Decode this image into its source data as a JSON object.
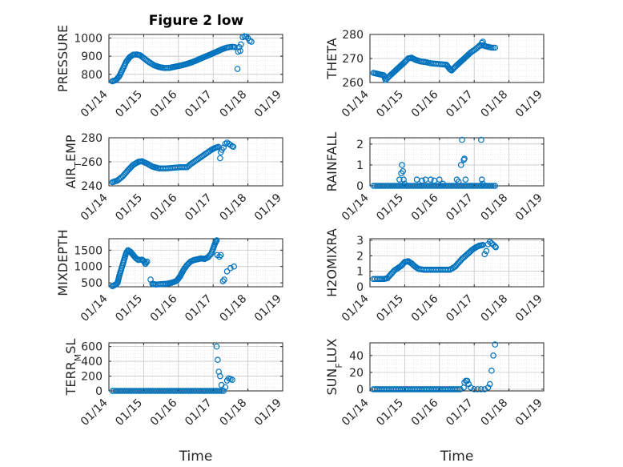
{
  "title": "Figure 2 low",
  "colors": {
    "marker": "#0072BD",
    "axis": "#262626",
    "grid": "#c8c8c8",
    "minor_grid": "#e3e3e3"
  },
  "x_tick_labels": [
    "01/14",
    "01/15",
    "01/16",
    "01/17",
    "01/18",
    "01/19"
  ],
  "xlabel": "Time",
  "chart_data": [
    {
      "type": "scatter",
      "id": "pressure",
      "ylabel": "PRESSURE",
      "ylabel_sub": "",
      "ylim": [
        755,
        1020
      ],
      "yticks": [
        800,
        900,
        1000
      ],
      "ytick_labels": [
        "800",
        "900",
        "1000"
      ],
      "xlim": [
        0,
        5
      ],
      "segments": [
        [
          [
            0.1,
            762
          ],
          [
            0.2,
            768
          ],
          [
            0.3,
            790
          ],
          [
            0.4,
            830
          ],
          [
            0.5,
            870
          ],
          [
            0.6,
            895
          ],
          [
            0.7,
            908
          ],
          [
            0.8,
            910
          ],
          [
            0.9,
            905
          ],
          [
            1.0,
            890
          ],
          [
            1.15,
            868
          ],
          [
            1.3,
            850
          ],
          [
            1.45,
            840
          ],
          [
            1.6,
            835
          ],
          [
            1.75,
            836
          ],
          [
            1.9,
            842
          ],
          [
            2.05,
            848
          ],
          [
            2.2,
            855
          ],
          [
            2.35,
            864
          ],
          [
            2.5,
            875
          ],
          [
            2.65,
            888
          ],
          [
            2.8,
            900
          ],
          [
            2.95,
            912
          ],
          [
            3.1,
            925
          ],
          [
            3.25,
            938
          ],
          [
            3.4,
            948
          ],
          [
            3.55,
            952
          ],
          [
            3.62,
            950
          ]
        ]
      ],
      "points": [
        [
          3.7,
          830
        ],
        [
          3.72,
          925
        ],
        [
          3.75,
          950
        ],
        [
          3.8,
          965
        ],
        [
          3.78,
          930
        ],
        [
          3.85,
          1005
        ],
        [
          3.9,
          1010
        ],
        [
          3.95,
          1008
        ],
        [
          4.0,
          1000
        ],
        [
          4.05,
          985
        ],
        [
          4.1,
          980
        ]
      ]
    },
    {
      "type": "scatter",
      "id": "theta",
      "ylabel": "THETA",
      "ylabel_sub": "",
      "ylim": [
        260,
        280
      ],
      "yticks": [
        260,
        270,
        280
      ],
      "ytick_labels": [
        "260",
        "270",
        "280"
      ],
      "xlim": [
        0,
        5
      ],
      "segments": [
        [
          [
            0.1,
            264
          ],
          [
            0.25,
            263.5
          ],
          [
            0.4,
            263
          ],
          [
            0.45,
            261
          ],
          [
            0.55,
            262.5
          ],
          [
            0.7,
            264.5
          ],
          [
            0.85,
            266.5
          ],
          [
            1.0,
            268.5
          ],
          [
            1.1,
            270
          ],
          [
            1.2,
            270.3
          ],
          [
            1.3,
            269.5
          ],
          [
            1.45,
            268.8
          ],
          [
            1.6,
            268.5
          ],
          [
            1.75,
            268
          ],
          [
            1.9,
            267.8
          ],
          [
            2.05,
            267.6
          ],
          [
            2.2,
            267.4
          ],
          [
            2.3,
            265.5
          ],
          [
            2.35,
            265
          ],
          [
            2.45,
            266.5
          ],
          [
            2.6,
            268.5
          ],
          [
            2.75,
            270.5
          ],
          [
            2.9,
            272.5
          ],
          [
            3.05,
            274
          ],
          [
            3.15,
            275.3
          ],
          [
            3.25,
            275.5
          ],
          [
            3.35,
            275
          ],
          [
            3.5,
            274.5
          ],
          [
            3.6,
            274.5
          ]
        ]
      ],
      "points": [
        [
          3.25,
          277
        ],
        [
          3.22,
          276.5
        ]
      ]
    },
    {
      "type": "scatter",
      "id": "air_temp",
      "ylabel": "AIR",
      "ylabel_sub": "T",
      "ylabel_tail": "EMP",
      "ylim": [
        240,
        280
      ],
      "yticks": [
        240,
        260,
        280
      ],
      "ytick_labels": [
        "240",
        "260",
        "280"
      ],
      "xlim": [
        0,
        5
      ],
      "segments": [
        [
          [
            0.1,
            243
          ],
          [
            0.25,
            244.5
          ],
          [
            0.4,
            248
          ],
          [
            0.55,
            253
          ],
          [
            0.7,
            257.5
          ],
          [
            0.85,
            260
          ],
          [
            0.95,
            260.5
          ],
          [
            1.1,
            258.5
          ],
          [
            1.25,
            256
          ],
          [
            1.45,
            254.5
          ],
          [
            1.65,
            254.5
          ],
          [
            1.85,
            255
          ],
          [
            2.05,
            255.5
          ],
          [
            2.25,
            255.5
          ],
          [
            2.35,
            258
          ],
          [
            2.5,
            261
          ],
          [
            2.65,
            264
          ],
          [
            2.8,
            267
          ],
          [
            2.95,
            270
          ],
          [
            3.05,
            271.5
          ],
          [
            3.15,
            272.5
          ]
        ]
      ],
      "points": [
        [
          3.2,
          263
        ],
        [
          3.22,
          268
        ],
        [
          3.25,
          270
        ],
        [
          3.3,
          272
        ],
        [
          3.35,
          275
        ],
        [
          3.4,
          276
        ],
        [
          3.45,
          275
        ],
        [
          3.5,
          274
        ],
        [
          3.55,
          273
        ],
        [
          3.58,
          272.5
        ]
      ]
    },
    {
      "type": "scatter",
      "id": "rainfall",
      "ylabel": "RAINFALL",
      "ylabel_sub": "",
      "ylim": [
        0,
        2.3
      ],
      "yticks": [
        0,
        1,
        2
      ],
      "ytick_labels": [
        "0",
        "1",
        "2"
      ],
      "xlim": [
        0,
        5
      ],
      "segments": [
        [
          [
            0.1,
            0
          ],
          [
            0.3,
            0
          ],
          [
            0.5,
            0
          ],
          [
            0.7,
            0
          ],
          [
            0.9,
            0
          ],
          [
            1.1,
            0
          ],
          [
            1.3,
            0
          ],
          [
            1.5,
            0
          ],
          [
            1.7,
            0
          ],
          [
            1.9,
            0
          ],
          [
            2.1,
            0
          ],
          [
            2.3,
            0
          ],
          [
            2.5,
            0
          ],
          [
            2.7,
            0
          ],
          [
            2.9,
            0
          ],
          [
            3.1,
            0
          ],
          [
            3.3,
            0
          ],
          [
            3.5,
            0
          ],
          [
            3.6,
            0
          ]
        ]
      ],
      "points": [
        [
          0.85,
          0.3
        ],
        [
          0.9,
          0.6
        ],
        [
          0.92,
          1.0
        ],
        [
          0.95,
          0.7
        ],
        [
          0.97,
          0.3
        ],
        [
          1.0,
          0.1
        ],
        [
          1.35,
          0.3
        ],
        [
          1.5,
          0.25
        ],
        [
          1.6,
          0.3
        ],
        [
          1.75,
          0.3
        ],
        [
          1.85,
          0.25
        ],
        [
          2.0,
          0.3
        ],
        [
          2.1,
          0.1
        ],
        [
          2.5,
          0.3
        ],
        [
          2.55,
          0.2
        ],
        [
          2.62,
          1.0
        ],
        [
          2.65,
          2.2
        ],
        [
          2.7,
          1.25
        ],
        [
          2.72,
          1.3
        ],
        [
          2.75,
          0.3
        ],
        [
          3.2,
          2.2
        ],
        [
          3.22,
          0.3
        ],
        [
          3.25,
          0.1
        ]
      ]
    },
    {
      "type": "scatter",
      "id": "mixdepth",
      "ylabel": "MIXDEPTH",
      "ylabel_sub": "",
      "ylim": [
        380,
        1850
      ],
      "yticks": [
        500,
        1000,
        1500
      ],
      "ytick_labels": [
        "500",
        "1000",
        "1500"
      ],
      "xlim": [
        0,
        5
      ],
      "segments": [
        [
          [
            0.1,
            400
          ],
          [
            0.2,
            450
          ],
          [
            0.25,
            500
          ],
          [
            0.3,
            720
          ],
          [
            0.38,
            1000
          ],
          [
            0.45,
            1250
          ],
          [
            0.5,
            1420
          ],
          [
            0.55,
            1500
          ],
          [
            0.62,
            1450
          ],
          [
            0.7,
            1350
          ],
          [
            0.78,
            1250
          ],
          [
            0.85,
            1200
          ],
          [
            0.95,
            1210
          ],
          [
            1.0,
            1170
          ],
          [
            1.05,
            1080
          ],
          [
            1.1,
            1150
          ]
        ],
        [
          [
            1.25,
            470
          ],
          [
            1.35,
            450
          ],
          [
            1.5,
            460
          ],
          [
            1.65,
            470
          ],
          [
            1.8,
            500
          ],
          [
            1.95,
            560
          ],
          [
            2.05,
            700
          ],
          [
            2.15,
            900
          ],
          [
            2.25,
            1050
          ],
          [
            2.35,
            1150
          ],
          [
            2.45,
            1200
          ],
          [
            2.55,
            1220
          ],
          [
            2.65,
            1250
          ],
          [
            2.75,
            1230
          ],
          [
            2.85,
            1280
          ],
          [
            2.95,
            1400
          ],
          [
            3.0,
            1550
          ],
          [
            3.05,
            1700
          ],
          [
            3.1,
            1800
          ]
        ]
      ],
      "points": [
        [
          1.2,
          600
        ],
        [
          3.12,
          1350
        ],
        [
          3.18,
          1300
        ],
        [
          3.22,
          1350
        ],
        [
          3.28,
          550
        ],
        [
          3.32,
          600
        ],
        [
          3.4,
          850
        ],
        [
          3.5,
          950
        ],
        [
          3.6,
          1000
        ]
      ]
    },
    {
      "type": "scatter",
      "id": "h2omixra",
      "ylabel": "H2OMIXRA",
      "ylabel_sub": "",
      "ylim": [
        0,
        3.1
      ],
      "yticks": [
        0,
        1,
        2,
        3
      ],
      "ytick_labels": [
        "0",
        "1",
        "2",
        "3"
      ],
      "xlim": [
        0,
        5
      ],
      "segments": [
        [
          [
            0.1,
            0.5
          ],
          [
            0.25,
            0.5
          ],
          [
            0.4,
            0.5
          ],
          [
            0.5,
            0.55
          ],
          [
            0.6,
            0.8
          ],
          [
            0.7,
            1.05
          ],
          [
            0.8,
            1.2
          ],
          [
            0.9,
            1.35
          ],
          [
            1.0,
            1.6
          ],
          [
            1.1,
            1.65
          ],
          [
            1.2,
            1.5
          ],
          [
            1.3,
            1.3
          ],
          [
            1.4,
            1.15
          ],
          [
            1.55,
            1.1
          ],
          [
            1.7,
            1.1
          ],
          [
            1.85,
            1.1
          ],
          [
            2.0,
            1.1
          ],
          [
            2.15,
            1.1
          ],
          [
            2.3,
            1.1
          ],
          [
            2.45,
            1.3
          ],
          [
            2.55,
            1.55
          ],
          [
            2.65,
            1.8
          ],
          [
            2.75,
            2.0
          ],
          [
            2.85,
            2.2
          ],
          [
            2.95,
            2.4
          ],
          [
            3.05,
            2.55
          ],
          [
            3.15,
            2.65
          ],
          [
            3.25,
            2.7
          ]
        ]
      ],
      "points": [
        [
          3.3,
          2.1
        ],
        [
          3.35,
          2.3
        ],
        [
          3.4,
          2.75
        ],
        [
          3.45,
          2.9
        ],
        [
          3.5,
          2.8
        ],
        [
          3.55,
          2.7
        ],
        [
          3.6,
          2.6
        ],
        [
          3.62,
          2.55
        ]
      ]
    },
    {
      "type": "scatter",
      "id": "terr_msl",
      "ylabel": "TERR",
      "ylabel_sub": "M",
      "ylabel_tail": "SL",
      "ylim": [
        0,
        650
      ],
      "yticks": [
        0,
        200,
        400,
        600
      ],
      "ytick_labels": [
        "0",
        "200",
        "400",
        "600"
      ],
      "xlim": [
        0,
        5
      ],
      "segments": [
        [
          [
            0.1,
            0
          ],
          [
            0.3,
            0
          ],
          [
            0.5,
            0
          ],
          [
            0.7,
            0
          ],
          [
            0.9,
            0
          ],
          [
            1.1,
            0
          ],
          [
            1.3,
            0
          ],
          [
            1.5,
            0
          ],
          [
            1.7,
            0
          ],
          [
            1.9,
            0
          ],
          [
            2.1,
            0
          ],
          [
            2.3,
            0
          ],
          [
            2.5,
            0
          ],
          [
            2.7,
            0
          ],
          [
            2.9,
            0
          ],
          [
            3.05,
            0
          ],
          [
            3.15,
            0
          ],
          [
            3.25,
            0
          ]
        ]
      ],
      "points": [
        [
          3.1,
          600
        ],
        [
          3.13,
          420
        ],
        [
          3.16,
          260
        ],
        [
          3.2,
          200
        ],
        [
          3.24,
          80
        ],
        [
          3.3,
          0
        ],
        [
          3.35,
          50
        ],
        [
          3.4,
          140
        ],
        [
          3.45,
          170
        ],
        [
          3.5,
          160
        ],
        [
          3.55,
          150
        ]
      ]
    },
    {
      "type": "scatter",
      "id": "sun_flux",
      "ylabel": "SUN",
      "ylabel_sub": "F",
      "ylabel_tail": "LUX",
      "ylim": [
        -2,
        55
      ],
      "yticks": [
        0,
        20,
        40
      ],
      "ytick_labels": [
        "0",
        "20",
        "40"
      ],
      "xlim": [
        0,
        5
      ],
      "segments": [
        [
          [
            0.1,
            0
          ],
          [
            0.3,
            0
          ],
          [
            0.5,
            0
          ],
          [
            0.7,
            0
          ],
          [
            0.9,
            0
          ],
          [
            1.1,
            0
          ],
          [
            1.3,
            0
          ],
          [
            1.5,
            0
          ],
          [
            1.7,
            0
          ],
          [
            1.9,
            0
          ],
          [
            2.1,
            0
          ],
          [
            2.3,
            0
          ],
          [
            2.5,
            0
          ],
          [
            2.6,
            0
          ]
        ]
      ],
      "points": [
        [
          2.7,
          2
        ],
        [
          2.72,
          8
        ],
        [
          2.76,
          10
        ],
        [
          2.8,
          10
        ],
        [
          2.84,
          6
        ],
        [
          2.9,
          2
        ],
        [
          3.0,
          0
        ],
        [
          3.1,
          0
        ],
        [
          3.2,
          0
        ],
        [
          3.3,
          0
        ],
        [
          3.4,
          2
        ],
        [
          3.45,
          6
        ],
        [
          3.5,
          22
        ],
        [
          3.55,
          40
        ],
        [
          3.6,
          53
        ]
      ]
    }
  ]
}
